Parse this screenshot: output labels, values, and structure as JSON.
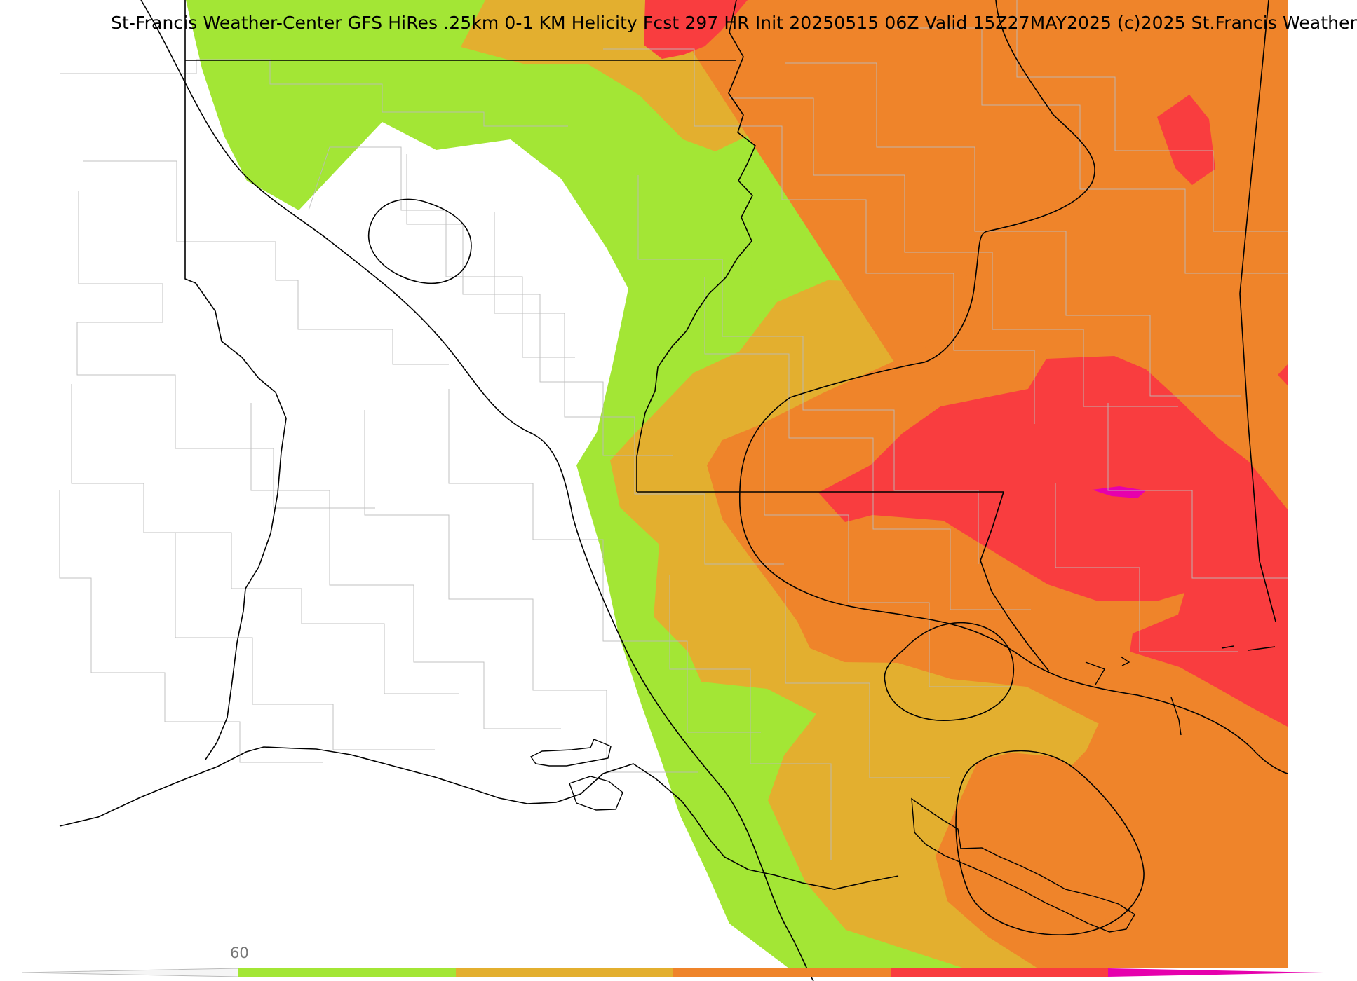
{
  "map": {
    "title": "St-Francis Weather-Center GFS HiRes .25km 0-1 KM Helicity Fcst 297 HR Init 20250515 06Z  Valid 15Z27MAY2025    (c)2025 St.Francis Weather",
    "legend": {
      "tick_labels": [
        "60"
      ],
      "colors": {
        "lime": "#a3e635",
        "gold": "#e3af2f",
        "orange": "#ef842a",
        "red": "#f93d3f",
        "magenta": "#e600ad"
      }
    }
  }
}
